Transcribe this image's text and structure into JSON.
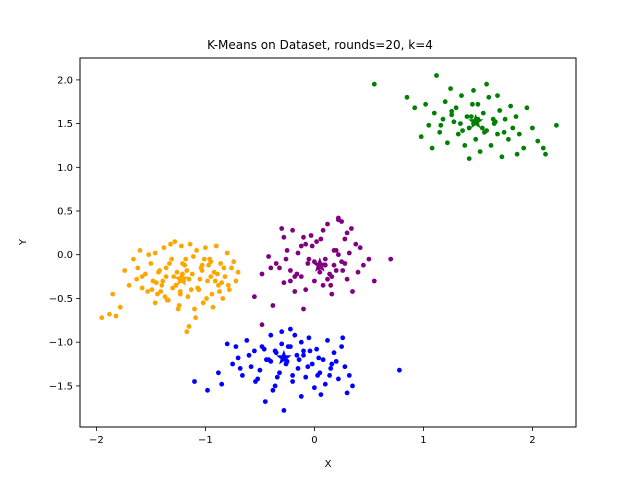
{
  "chart_data": {
    "type": "scatter",
    "title": "K-Means on Dataset, rounds=20, k=4",
    "xlabel": "X",
    "ylabel": "Y",
    "xlim": [
      -2.15,
      2.4
    ],
    "ylim": [
      -1.97,
      2.25
    ],
    "xticks": [
      -2,
      -1,
      0,
      1,
      2
    ],
    "xtick_labels": [
      "−2",
      "−1",
      "0",
      "1",
      "2"
    ],
    "yticks": [
      -1.5,
      -1.0,
      -0.5,
      0.0,
      0.5,
      1.0,
      1.5,
      2.0
    ],
    "ytick_labels": [
      "−1.5",
      "−1.0",
      "−0.5",
      "0.0",
      "0.5",
      "1.0",
      "1.5",
      "2.0"
    ],
    "grid": false,
    "legend": "none",
    "series": [
      {
        "color": "#ffa500",
        "centroid": [
          -1.22,
          -0.28
        ],
        "x": [
          -1.95,
          -1.88,
          -1.85,
          -1.82,
          -1.78,
          -1.74,
          -1.7,
          -1.66,
          -1.63,
          -1.6,
          -1.58,
          -1.55,
          -1.53,
          -1.5,
          -1.48,
          -1.46,
          -1.44,
          -1.42,
          -1.4,
          -1.38,
          -1.36,
          -1.34,
          -1.32,
          -1.3,
          -1.28,
          -1.26,
          -1.24,
          -1.22,
          -1.2,
          -1.18,
          -1.16,
          -1.14,
          -1.12,
          -1.1,
          -1.08,
          -1.06,
          -1.04,
          -1.02,
          -1.0,
          -0.98,
          -0.96,
          -0.94,
          -0.92,
          -0.9,
          -0.88,
          -0.86,
          -0.84,
          -0.82,
          -0.8,
          -0.78,
          -0.76,
          -0.74,
          -0.72,
          -0.7,
          -1.58,
          -1.52,
          -1.45,
          -1.41,
          -1.36,
          -1.31,
          -1.27,
          -1.23,
          -1.19,
          -1.15,
          -1.11,
          -1.07,
          -1.03,
          -0.99,
          -0.95,
          -0.91,
          -0.87,
          -0.83,
          -0.79,
          -1.49,
          -1.43,
          -1.37,
          -1.29,
          -1.21,
          -1.13,
          -1.05,
          -0.97,
          -0.89,
          -1.62,
          -1.35,
          -1.25,
          -1.17,
          -1.09,
          -1.01,
          -0.93,
          -0.85,
          -1.46,
          -1.39,
          -1.33,
          -1.27,
          -1.21,
          -1.15,
          -1.03,
          -0.95,
          -1.17,
          -1.23
        ],
        "y": [
          -0.72,
          -0.68,
          -0.45,
          -0.7,
          -0.6,
          -0.18,
          -0.35,
          -0.05,
          -0.28,
          0.05,
          -0.38,
          -0.22,
          -0.42,
          -0.1,
          -0.3,
          0.02,
          -0.45,
          -0.18,
          -0.35,
          0.08,
          -0.25,
          -0.52,
          0.12,
          -0.38,
          0.15,
          -0.2,
          -0.58,
          0.1,
          -0.3,
          -0.05,
          -0.48,
          0.12,
          -0.22,
          -0.62,
          0.05,
          -0.4,
          -0.15,
          -0.55,
          0.08,
          -0.3,
          -0.05,
          -0.45,
          -0.2,
          0.1,
          -0.35,
          -0.1,
          -0.5,
          -0.25,
          0.02,
          -0.4,
          -0.15,
          -0.08,
          -0.3,
          -0.2,
          -0.25,
          0.0,
          -0.32,
          -0.42,
          -0.15,
          -0.05,
          -0.35,
          -0.45,
          -0.12,
          -0.28,
          -0.02,
          -0.38,
          -0.18,
          -0.5,
          -0.08,
          -0.3,
          -0.42,
          -0.15,
          -0.35,
          -0.4,
          -0.2,
          -0.48,
          -0.25,
          -0.1,
          -0.4,
          -0.28,
          -0.12,
          -0.22,
          -0.15,
          -0.52,
          -0.62,
          -0.18,
          -0.72,
          -0.05,
          -0.6,
          -0.32,
          -0.55,
          -0.3,
          -0.1,
          -0.35,
          -0.22,
          -0.82,
          -0.12,
          -0.25,
          -0.88,
          -0.42
        ]
      },
      {
        "color": "#800080",
        "centroid": [
          0.05,
          -0.12
        ],
        "x": [
          -0.55,
          -0.48,
          -0.42,
          -0.38,
          -0.35,
          -0.3,
          -0.28,
          -0.25,
          -0.22,
          -0.2,
          -0.18,
          -0.15,
          -0.12,
          -0.1,
          -0.08,
          -0.05,
          -0.03,
          0.0,
          0.02,
          0.05,
          0.08,
          0.1,
          0.12,
          0.15,
          0.18,
          0.2,
          0.22,
          0.25,
          0.28,
          0.3,
          0.32,
          0.35,
          0.38,
          0.4,
          0.42,
          0.45,
          0.5,
          0.55,
          0.7,
          -0.32,
          -0.26,
          -0.18,
          -0.12,
          -0.06,
          0.04,
          0.1,
          0.16,
          0.22,
          0.28,
          -0.4,
          0.06,
          0.14,
          0.2,
          -0.22,
          -0.08,
          0.0,
          0.08,
          0.3,
          -0.16,
          -0.02,
          0.12,
          0.26,
          0.34,
          -0.28,
          0.18,
          0.22,
          0.25,
          -0.48,
          -0.1,
          0.16
        ],
        "y": [
          -0.48,
          -0.22,
          -0.02,
          -0.58,
          -0.1,
          0.3,
          -0.32,
          0.05,
          -0.18,
          0.28,
          -0.42,
          0.02,
          -0.25,
          0.2,
          -0.4,
          -0.05,
          0.22,
          -0.3,
          0.15,
          -0.2,
          0.28,
          -0.12,
          0.35,
          -0.35,
          0.05,
          -0.18,
          0.4,
          -0.08,
          0.18,
          -0.28,
          0.02,
          -0.42,
          0.12,
          -0.2,
          0.08,
          -0.12,
          -0.05,
          -0.3,
          -0.05,
          -0.15,
          -0.05,
          -0.25,
          0.1,
          -0.1,
          -0.15,
          -0.05,
          -0.25,
          0.0,
          -0.1,
          -0.15,
          0.18,
          -0.22,
          0.05,
          -0.3,
          0.12,
          -0.08,
          -0.35,
          0.25,
          -0.22,
          0.1,
          -0.28,
          -0.18,
          0.3,
          0.2,
          -0.12,
          0.42,
          0.38,
          -0.8,
          -0.62,
          -0.45
        ]
      },
      {
        "color": "#0000ff",
        "centroid": [
          -0.28,
          -1.18
        ],
        "x": [
          -1.1,
          -0.98,
          -0.88,
          -0.85,
          -0.8,
          -0.75,
          -0.7,
          -0.66,
          -0.62,
          -0.58,
          -0.55,
          -0.52,
          -0.48,
          -0.45,
          -0.42,
          -0.4,
          -0.38,
          -0.35,
          -0.32,
          -0.3,
          -0.28,
          -0.25,
          -0.22,
          -0.2,
          -0.18,
          -0.15,
          -0.12,
          -0.1,
          -0.08,
          -0.05,
          -0.02,
          0.0,
          0.02,
          0.05,
          0.08,
          0.1,
          0.12,
          0.15,
          0.18,
          0.22,
          0.25,
          0.28,
          0.32,
          0.35,
          0.78,
          -0.6,
          -0.5,
          -0.44,
          -0.36,
          -0.26,
          -0.16,
          -0.06,
          0.04,
          0.14,
          -0.68,
          -0.46,
          -0.34,
          -0.24,
          -0.14,
          -0.04,
          0.06,
          0.16,
          0.26,
          -0.54,
          -0.4,
          -0.3,
          -0.2,
          -0.1,
          0.2,
          -0.36,
          -0.22,
          -0.12,
          0.03,
          -0.72,
          0.3
        ],
        "y": [
          -1.45,
          -1.55,
          -1.35,
          -1.48,
          -1.02,
          -1.25,
          -1.18,
          -1.38,
          -0.98,
          -1.28,
          -1.1,
          -1.42,
          -1.05,
          -1.68,
          -1.2,
          -0.92,
          -1.55,
          -1.12,
          -1.35,
          -0.88,
          -1.78,
          -1.22,
          -1.05,
          -1.45,
          -0.92,
          -1.3,
          -1.62,
          -1.1,
          -1.4,
          -0.95,
          -1.25,
          -1.52,
          -1.08,
          -1.35,
          -1.2,
          -1.48,
          -0.98,
          -1.3,
          -1.12,
          -1.42,
          -1.05,
          -1.28,
          -1.38,
          -1.5,
          -1.32,
          -1.15,
          -1.32,
          -1.2,
          -1.1,
          -1.25,
          -1.15,
          -1.28,
          -1.18,
          -1.38,
          -1.3,
          -1.08,
          -1.4,
          -1.05,
          -1.2,
          -1.1,
          -1.6,
          -1.25,
          -0.95,
          -1.45,
          -1.22,
          -1.02,
          -1.38,
          -1.15,
          -1.22,
          -1.5,
          -0.85,
          -1.0,
          -1.38,
          -1.05,
          -1.58
        ]
      },
      {
        "color": "#008000",
        "centroid": [
          1.48,
          1.52
        ],
        "x": [
          0.55,
          0.85,
          0.92,
          0.98,
          1.02,
          1.05,
          1.08,
          1.1,
          1.12,
          1.15,
          1.18,
          1.2,
          1.22,
          1.25,
          1.28,
          1.3,
          1.32,
          1.35,
          1.38,
          1.4,
          1.42,
          1.45,
          1.48,
          1.5,
          1.52,
          1.55,
          1.58,
          1.6,
          1.62,
          1.65,
          1.68,
          1.7,
          1.72,
          1.75,
          1.78,
          1.8,
          1.82,
          1.85,
          1.88,
          1.92,
          1.95,
          2.0,
          2.05,
          2.1,
          2.12,
          2.22,
          1.34,
          1.44,
          1.54,
          1.64,
          1.26,
          1.36,
          1.46,
          1.56,
          1.66,
          1.16,
          1.26,
          1.74,
          1.86,
          1.46,
          1.5,
          1.58,
          1.42,
          1.68
        ],
        "y": [
          1.95,
          1.8,
          1.68,
          1.35,
          1.72,
          1.48,
          1.22,
          1.62,
          2.05,
          1.4,
          1.55,
          1.75,
          1.28,
          1.9,
          1.52,
          1.68,
          1.38,
          1.82,
          1.25,
          1.58,
          1.45,
          1.72,
          1.32,
          1.55,
          1.18,
          1.62,
          1.42,
          1.8,
          1.25,
          1.5,
          1.38,
          1.65,
          1.12,
          1.55,
          1.32,
          1.7,
          1.45,
          1.58,
          1.38,
          1.22,
          1.68,
          1.45,
          1.3,
          1.22,
          1.15,
          1.48,
          1.5,
          1.58,
          1.45,
          1.55,
          1.6,
          1.42,
          1.5,
          1.4,
          1.52,
          1.48,
          1.64,
          1.4,
          1.15,
          1.88,
          1.72,
          1.95,
          1.1,
          1.82
        ]
      }
    ]
  }
}
